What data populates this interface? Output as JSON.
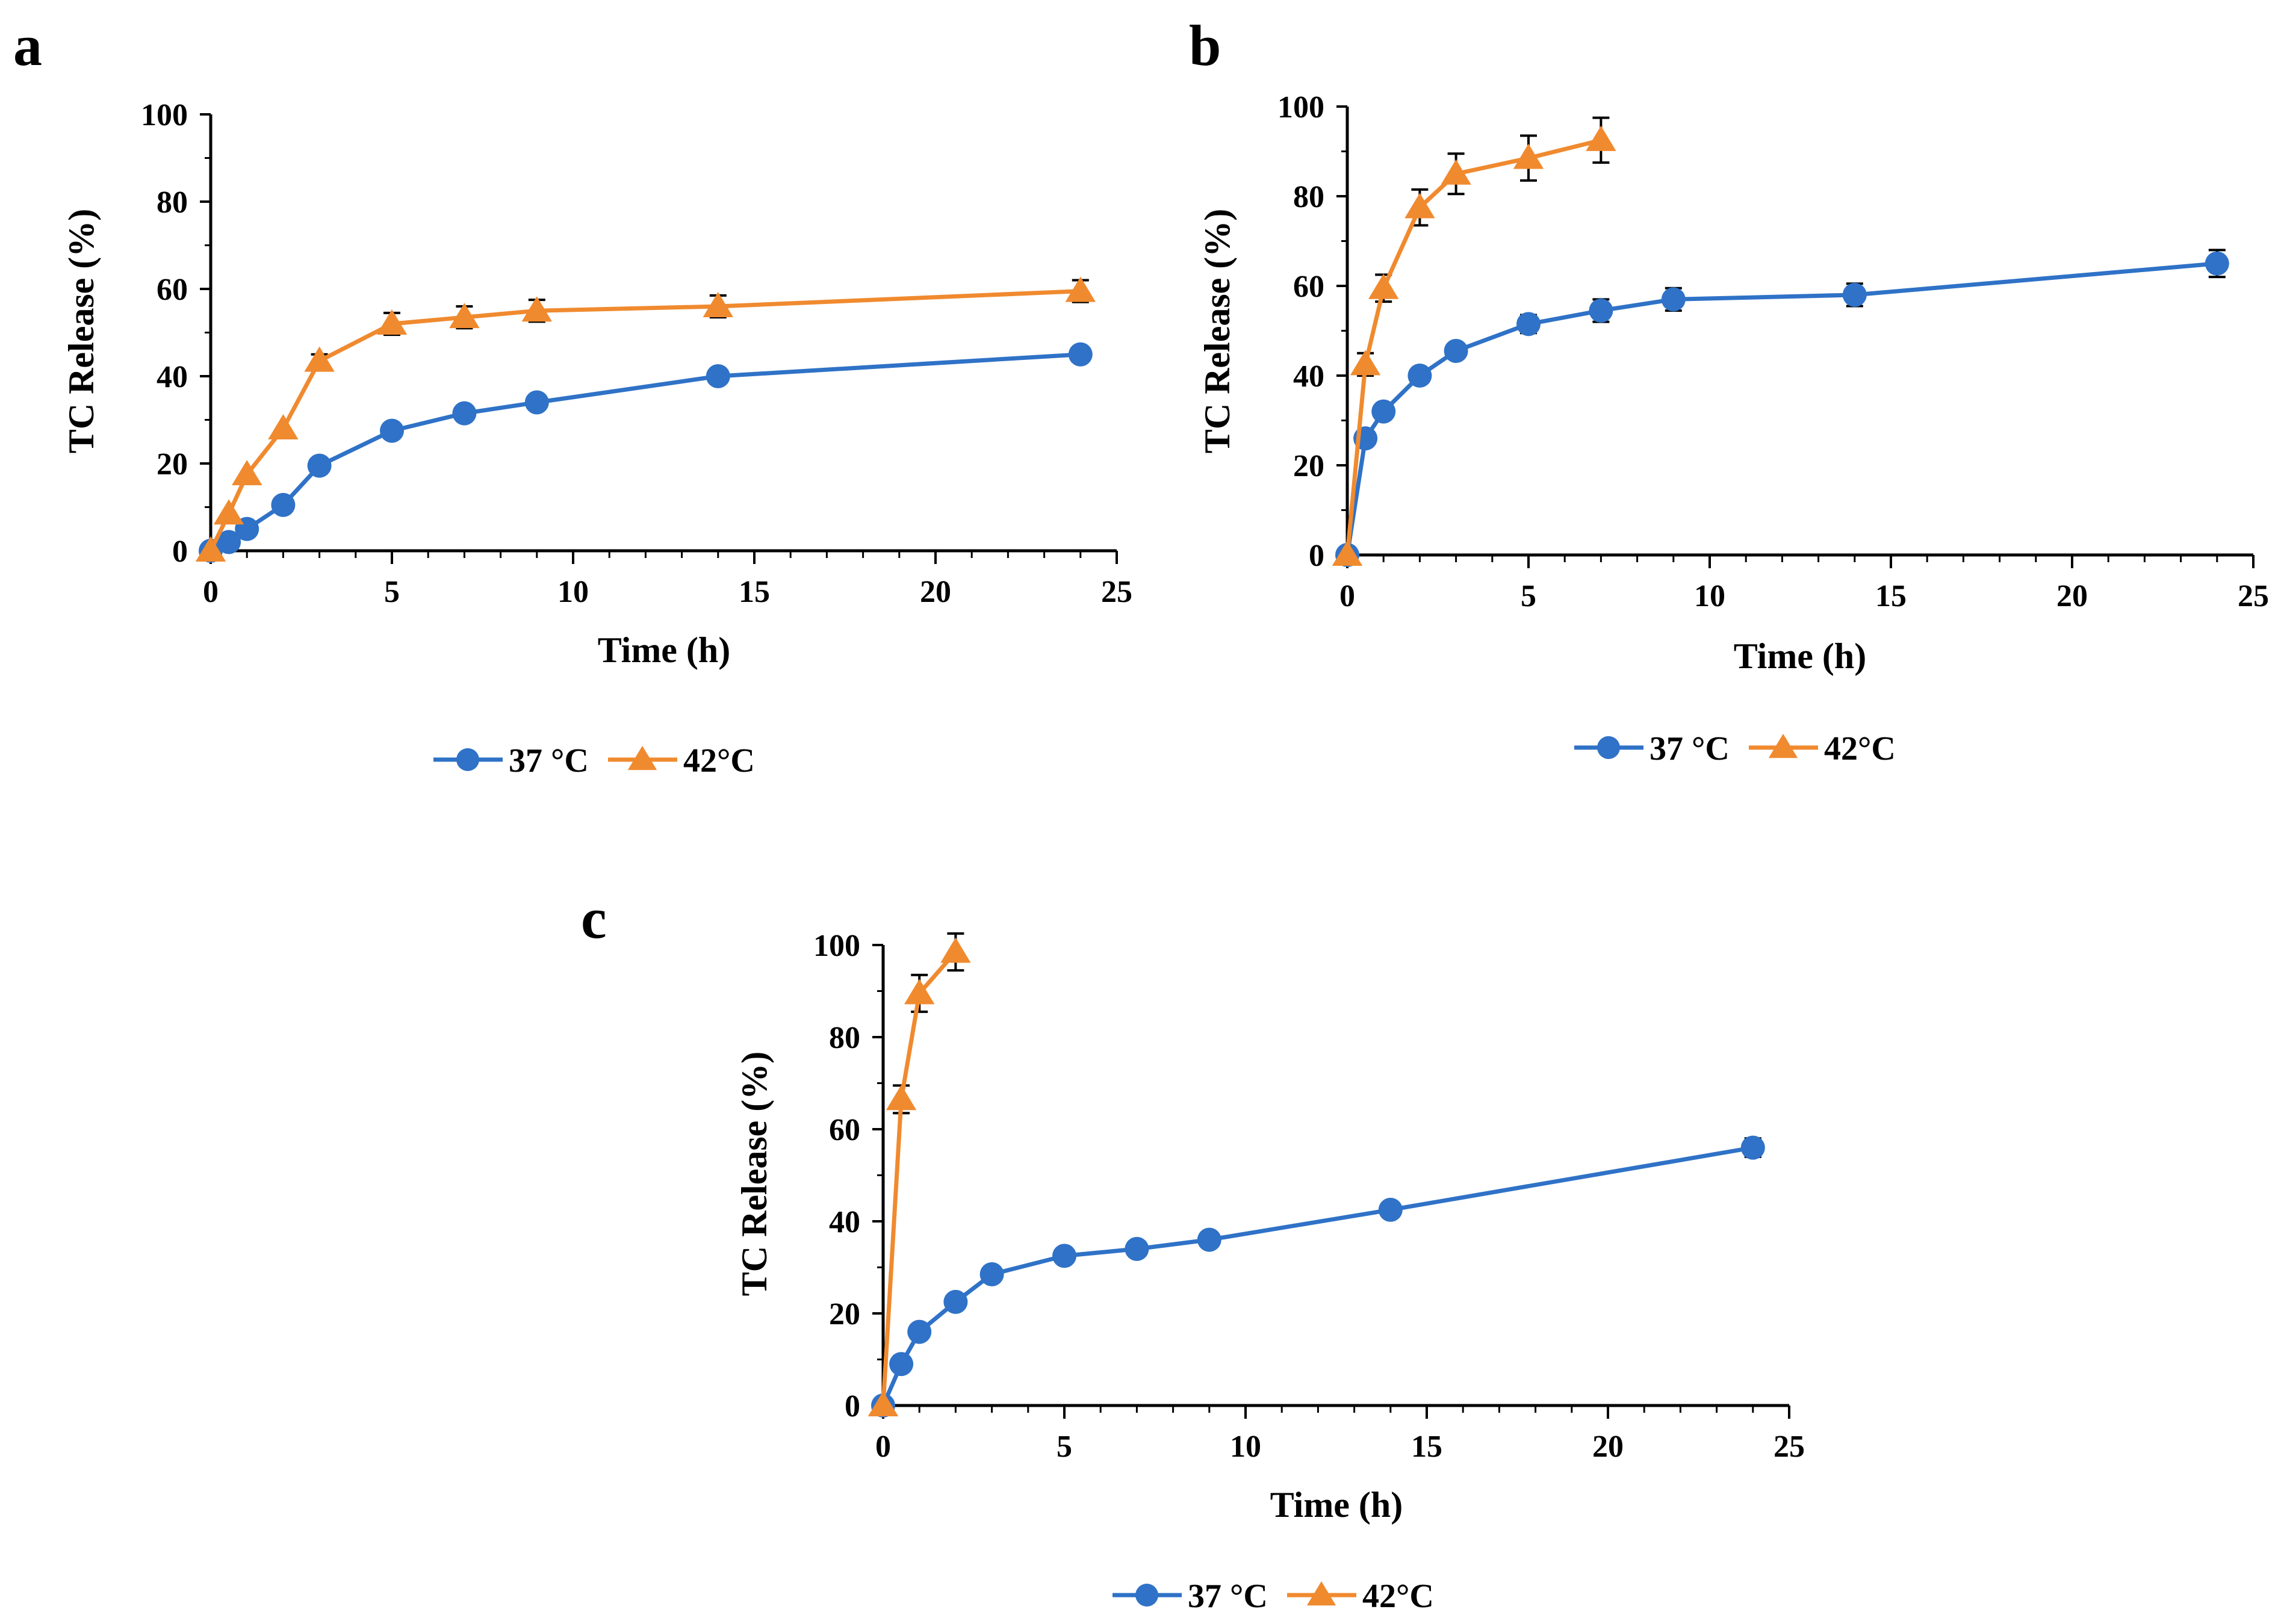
{
  "colors": {
    "s37": "#2f72c7",
    "s42": "#f08a2f",
    "axis": "#000000"
  },
  "chart_data": [
    {
      "panel": "a",
      "type": "line",
      "xlabel": "Time (h)",
      "ylabel": "TC Release (%)",
      "xlim": [
        0,
        25
      ],
      "ylim": [
        0,
        100
      ],
      "xticks": [
        "0",
        "5",
        "10",
        "15",
        "20",
        "25"
      ],
      "yticks": [
        "0",
        "20",
        "40",
        "60",
        "80",
        "100"
      ],
      "legend_position": "bottom",
      "series": [
        {
          "name": "37 °C",
          "marker": "circle",
          "x": [
            0,
            0.5,
            1,
            2,
            3,
            5,
            7,
            9,
            14,
            24
          ],
          "y": [
            0,
            2,
            5,
            10.5,
            19.5,
            27.5,
            31.5,
            34,
            40,
            45
          ],
          "err": [
            0,
            0,
            0,
            0,
            0,
            0,
            0,
            0,
            0,
            0
          ]
        },
        {
          "name": "42°C",
          "marker": "triangle",
          "x": [
            0,
            0.5,
            1,
            2,
            3,
            5,
            7,
            9,
            14,
            24
          ],
          "y": [
            0,
            8.5,
            17.5,
            28,
            43.5,
            52,
            53.5,
            55,
            56,
            59.5
          ],
          "err": [
            0,
            0,
            0,
            0,
            1.5,
            2.5,
            2.5,
            2.5,
            2.5,
            2.5
          ]
        }
      ]
    },
    {
      "panel": "b",
      "type": "line",
      "xlabel": "Time (h)",
      "ylabel": "TC Release (%)",
      "xlim": [
        0,
        25
      ],
      "ylim": [
        0,
        100
      ],
      "xticks": [
        "0",
        "5",
        "10",
        "15",
        "20",
        "25"
      ],
      "yticks": [
        "0",
        "20",
        "40",
        "60",
        "80",
        "100"
      ],
      "legend_position": "bottom",
      "series": [
        {
          "name": "37 °C",
          "marker": "circle",
          "x": [
            0,
            0.5,
            1,
            2,
            3,
            5,
            7,
            9,
            14,
            24
          ],
          "y": [
            0,
            26,
            32,
            40,
            45.5,
            51.5,
            54.5,
            57,
            58,
            65
          ],
          "err": [
            0,
            0,
            0,
            0,
            0,
            2,
            2.5,
            2.5,
            2.5,
            3
          ]
        },
        {
          "name": "42°C",
          "marker": "triangle",
          "x": [
            0,
            0.5,
            1,
            2,
            3,
            5,
            7
          ],
          "y": [
            0,
            42.5,
            59.5,
            77.5,
            85,
            88.5,
            92.5
          ],
          "err": [
            0,
            2.5,
            3,
            4,
            4.5,
            5,
            5
          ]
        }
      ]
    },
    {
      "panel": "c",
      "type": "line",
      "xlabel": "Time (h)",
      "ylabel": "TC Release (%)",
      "xlim": [
        0,
        25
      ],
      "ylim": [
        0,
        100
      ],
      "xticks": [
        "0",
        "5",
        "10",
        "15",
        "20",
        "25"
      ],
      "yticks": [
        "0",
        "20",
        "40",
        "60",
        "80",
        "100"
      ],
      "legend_position": "bottom",
      "series": [
        {
          "name": "37 °C",
          "marker": "circle",
          "x": [
            0,
            0.5,
            1,
            2,
            3,
            5,
            7,
            9,
            14,
            24
          ],
          "y": [
            0,
            9,
            16,
            22.5,
            28.5,
            32.5,
            34,
            36,
            42.5,
            56
          ],
          "err": [
            0,
            0,
            0,
            0,
            0,
            0,
            0,
            0,
            0,
            2
          ]
        },
        {
          "name": "42°C",
          "marker": "triangle",
          "x": [
            0,
            0.5,
            1,
            2
          ],
          "y": [
            0,
            66.5,
            89.5,
            98.5
          ],
          "err": [
            0,
            3,
            4,
            4
          ]
        }
      ]
    }
  ]
}
